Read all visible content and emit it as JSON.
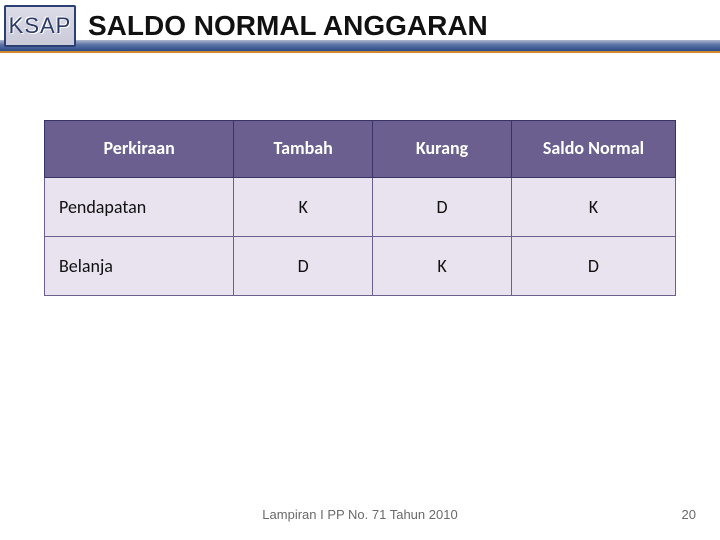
{
  "header": {
    "logo_text": "KSAP",
    "title": "SALDO NORMAL ANGGARAN"
  },
  "table": {
    "type": "table",
    "background_color_header": "#6a5f8e",
    "background_color_cell": "#e9e3ef",
    "border_color": "#6a5f8e",
    "header_text_color": "#ffffff",
    "cell_text_color": "#111111",
    "header_fontsize": 18,
    "cell_fontsize": 18,
    "columns": [
      {
        "key": "perkiraan",
        "label": "Perkiraan",
        "width": "30%",
        "align": "left"
      },
      {
        "key": "tambah",
        "label": "Tambah",
        "width": "22%",
        "align": "center"
      },
      {
        "key": "kurang",
        "label": "Kurang",
        "width": "22%",
        "align": "center"
      },
      {
        "key": "saldo",
        "label": "Saldo Normal",
        "width": "26%",
        "align": "center"
      }
    ],
    "rows": [
      {
        "perkiraan": "Pendapatan",
        "tambah": "K",
        "kurang": "D",
        "saldo": "K"
      },
      {
        "perkiraan": "Belanja",
        "tambah": "D",
        "kurang": "K",
        "saldo": "D"
      }
    ]
  },
  "footer": {
    "note": "Lampiran I PP No. 71 Tahun 2010",
    "page_number": "20"
  },
  "colors": {
    "accent_gradient_top": "#b0b8cf",
    "accent_gradient_bottom": "#2c4a87",
    "accent_underline": "#d0882a"
  }
}
